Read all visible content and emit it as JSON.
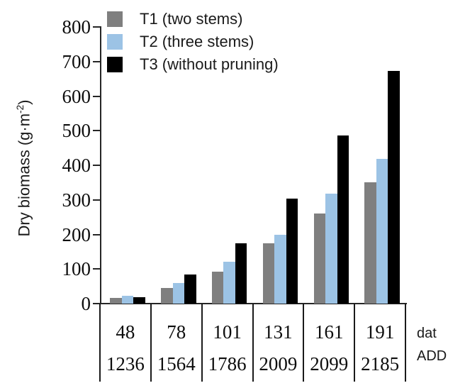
{
  "labels": {
    "ylabel_pre": "Dry biomass (g·m",
    "ylabel_sup": "-2",
    "ylabel_post": ")"
  },
  "chart_data": {
    "type": "bar",
    "title": "",
    "ylabel": "Dry biomass (g·m^-2)",
    "ylim": [
      0,
      800
    ],
    "ytick_step": 100,
    "grid": false,
    "legend_position": "top-left-inside",
    "x_axis_rows": [
      {
        "name": "dat",
        "values": [
          "48",
          "78",
          "101",
          "131",
          "161",
          "191"
        ]
      },
      {
        "name": "ADD",
        "values": [
          "1236",
          "1564",
          "1786",
          "2009",
          "2099",
          "2185"
        ]
      }
    ],
    "series": [
      {
        "name": "T1 (two stems)",
        "color": "#7f7f7f",
        "values": [
          17,
          46,
          93,
          175,
          261,
          350
        ]
      },
      {
        "name": "T2 (three stems)",
        "color": "#9cc3e5",
        "values": [
          23,
          59,
          122,
          199,
          318,
          419
        ]
      },
      {
        "name": "T3 (without pruning)",
        "color": "#000000",
        "values": [
          19,
          85,
          174,
          303,
          486,
          672
        ]
      }
    ]
  }
}
